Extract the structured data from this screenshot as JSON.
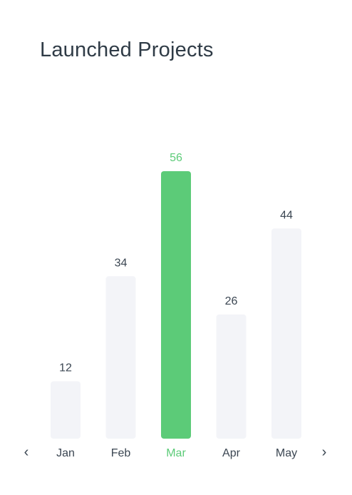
{
  "header": {
    "title": "Launched Projects"
  },
  "nav": {
    "prev_glyph": "‹",
    "next_glyph": "›",
    "prev_icon": "chevron-left-icon",
    "next_icon": "chevron-right-icon"
  },
  "colors": {
    "bar_default": "#f3f4f8",
    "bar_active": "#5ccb78",
    "label_default": "#3b4652",
    "label_active": "#5ccb78",
    "value_default": "#3b4652",
    "value_active": "#5ccb78"
  },
  "chart_data": {
    "type": "bar",
    "categories": [
      "Jan",
      "Feb",
      "Mar",
      "Apr",
      "May"
    ],
    "values": [
      12,
      34,
      56,
      26,
      44
    ],
    "highlighted": "Mar",
    "ylim": [
      0,
      60
    ],
    "grid": false,
    "data_labels": true
  }
}
